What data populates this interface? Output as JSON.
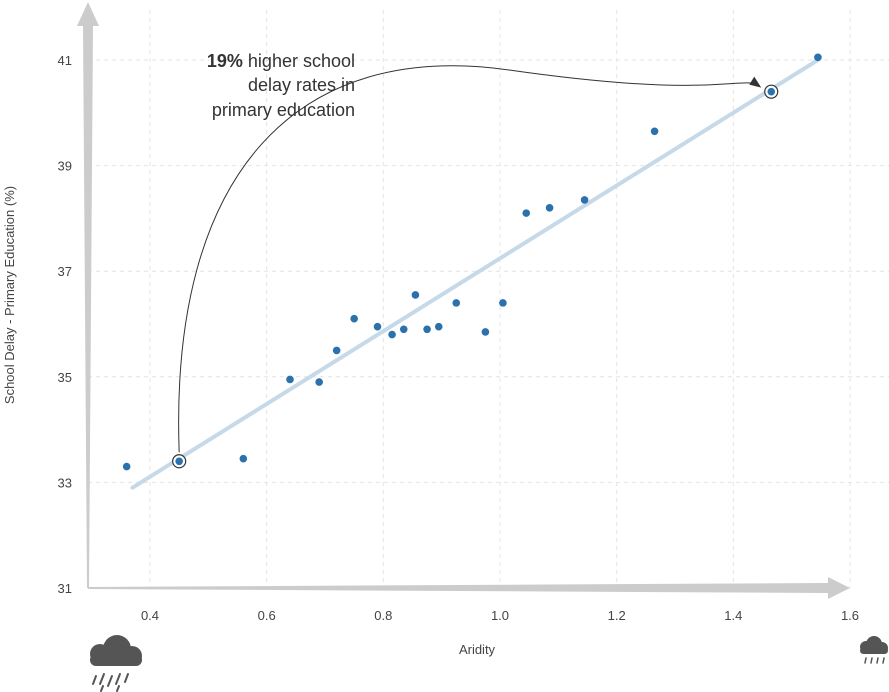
{
  "chart_data": {
    "type": "scatter",
    "xlabel": "Aridity",
    "ylabel": "School Delay - Primary Education (%)",
    "x_ticks": [
      "0.4",
      "0.6",
      "0.8",
      "1.0",
      "1.2",
      "1.4",
      "1.6"
    ],
    "y_ticks": [
      "31",
      "33",
      "35",
      "37",
      "39",
      "41"
    ],
    "xlim": [
      0.3,
      1.6
    ],
    "ylim": [
      31,
      41.6
    ],
    "grid": true,
    "points": [
      {
        "x": 0.36,
        "y": 33.3
      },
      {
        "x": 0.56,
        "y": 33.45
      },
      {
        "x": 0.64,
        "y": 34.95
      },
      {
        "x": 0.69,
        "y": 34.9
      },
      {
        "x": 0.72,
        "y": 35.5
      },
      {
        "x": 0.75,
        "y": 36.1
      },
      {
        "x": 0.79,
        "y": 35.95
      },
      {
        "x": 0.815,
        "y": 35.8
      },
      {
        "x": 0.835,
        "y": 35.9
      },
      {
        "x": 0.855,
        "y": 36.55
      },
      {
        "x": 0.875,
        "y": 35.9
      },
      {
        "x": 0.895,
        "y": 35.95
      },
      {
        "x": 0.925,
        "y": 36.4
      },
      {
        "x": 0.975,
        "y": 35.85
      },
      {
        "x": 1.005,
        "y": 36.4
      },
      {
        "x": 1.045,
        "y": 38.1
      },
      {
        "x": 1.085,
        "y": 38.2
      },
      {
        "x": 1.145,
        "y": 38.35
      },
      {
        "x": 1.265,
        "y": 39.65
      },
      {
        "x": 1.545,
        "y": 41.05
      }
    ],
    "highlighted_points": [
      {
        "x": 0.45,
        "y": 33.4
      },
      {
        "x": 1.465,
        "y": 40.4
      }
    ],
    "trend_line": {
      "x": [
        0.37,
        1.545
      ],
      "y": [
        32.9,
        41.0
      ]
    },
    "annotation": {
      "bold": "19%",
      "line1": " higher school",
      "line2": "delay rates in",
      "line3": "primary education"
    },
    "colors": {
      "point": "#2b72ad",
      "trend": "#c5d9e8",
      "axis": "#cccccc",
      "grid": "#e4e4e4",
      "icon": "#555555"
    },
    "icons": [
      "heavy-rain-cloud-icon",
      "light-rain-cloud-icon"
    ]
  }
}
